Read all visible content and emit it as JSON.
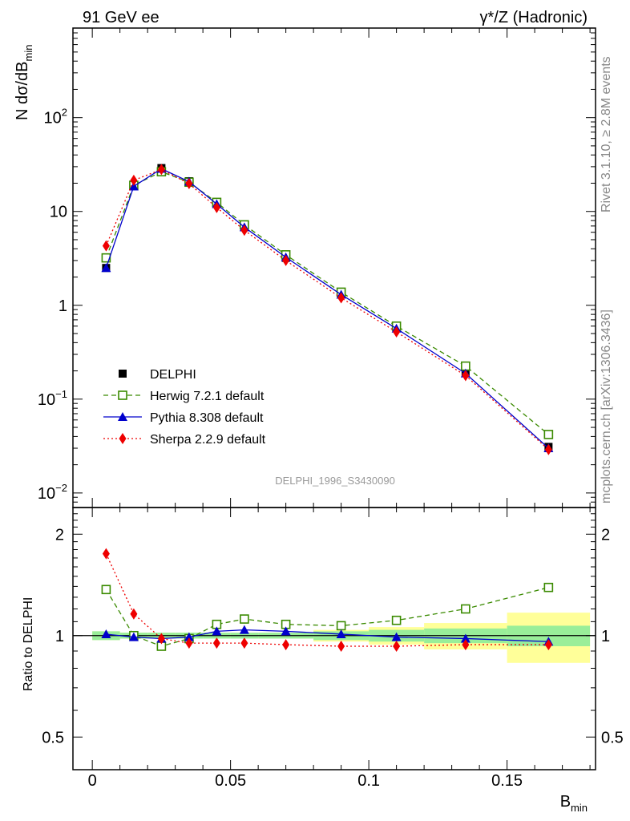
{
  "header": {
    "left": "91 GeV ee",
    "right": "γ*/Z (Hadronic)"
  },
  "side_text": {
    "upper": "Rivet 3.1.10, ≥ 2.8M events",
    "lower": "mcplots.cern.ch [arXiv:1306.3436]"
  },
  "watermark": "DELPHI_1996_S3430090",
  "colors": {
    "delphi": "#000000",
    "herwig": "#3a8a00",
    "pythia": "#0000cc",
    "sherpa": "#ee0000",
    "band_inner": "#99ee99",
    "band_outer": "#ffff99"
  },
  "chart_data": [
    {
      "type": "line",
      "panel": "main",
      "ylabel": "N dσ/dB",
      "ylabel_sub": "min",
      "yscale": "log",
      "ylim": [
        0.007,
        900
      ],
      "xlim": [
        -0.007,
        0.182
      ],
      "ytick_labels": [
        {
          "value": 100,
          "base": "10",
          "exp": "2"
        },
        {
          "value": 10,
          "base": "10",
          "exp": ""
        },
        {
          "value": 1,
          "base": "1",
          "exp": ""
        },
        {
          "value": 0.1,
          "base": "10",
          "exp": "−1"
        },
        {
          "value": 0.01,
          "base": "10",
          "exp": "−2"
        }
      ],
      "x": [
        0.005,
        0.015,
        0.025,
        0.035,
        0.045,
        0.055,
        0.07,
        0.09,
        0.11,
        0.135,
        0.165
      ],
      "series": [
        {
          "name": "DELPHI",
          "marker": "square-filled",
          "values": [
            2.5,
            19,
            29,
            21,
            12,
            6.8,
            3.2,
            1.3,
            0.57,
            0.19,
            0.031
          ]
        },
        {
          "name": "Herwig 7.2.1 default",
          "marker": "square-open",
          "dash": "dashed",
          "values": [
            3.2,
            19,
            26.5,
            20.5,
            12.5,
            7.2,
            3.45,
            1.38,
            0.6,
            0.225,
            0.042
          ]
        },
        {
          "name": "Pythia 8.308 default",
          "marker": "triangle-filled",
          "values": [
            2.5,
            18.5,
            28.5,
            20.8,
            12.0,
            6.8,
            3.25,
            1.3,
            0.565,
            0.188,
            0.03
          ]
        },
        {
          "name": "Sherpa 2.2.9 default",
          "marker": "diamond-filled",
          "dash": "dotted",
          "values": [
            4.3,
            21.5,
            28.0,
            19.8,
            11.0,
            6.3,
            3.0,
            1.2,
            0.52,
            0.178,
            0.029
          ]
        }
      ]
    },
    {
      "type": "line",
      "panel": "ratio",
      "ylabel": "Ratio to DELPHI",
      "ylim": [
        0.4,
        2.4
      ],
      "xlim": [
        -0.007,
        0.182
      ],
      "xlabel": "B",
      "xlabel_sub": "min",
      "xtick_labels": [
        "0",
        "0.05",
        "0.1",
        "0.15"
      ],
      "xtick_values": [
        0,
        0.05,
        0.1,
        0.15
      ],
      "ytick_labels": [
        "0.5",
        "1",
        "2"
      ],
      "ytick_values": [
        0.5,
        1,
        2
      ],
      "x": [
        0.005,
        0.015,
        0.025,
        0.035,
        0.045,
        0.055,
        0.07,
        0.09,
        0.11,
        0.135,
        0.165
      ],
      "bins": [
        [
          0,
          0.01
        ],
        [
          0.01,
          0.02
        ],
        [
          0.02,
          0.03
        ],
        [
          0.03,
          0.04
        ],
        [
          0.04,
          0.05
        ],
        [
          0.05,
          0.06
        ],
        [
          0.06,
          0.08
        ],
        [
          0.08,
          0.1
        ],
        [
          0.1,
          0.12
        ],
        [
          0.12,
          0.15
        ],
        [
          0.15,
          0.18
        ]
      ],
      "band_inner": [
        0.03,
        0.02,
        0.02,
        0.02,
        0.02,
        0.02,
        0.02,
        0.03,
        0.04,
        0.05,
        0.07
      ],
      "band_outer": [
        0.03,
        0.02,
        0.02,
        0.02,
        0.02,
        0.02,
        0.02,
        0.04,
        0.06,
        0.09,
        0.17
      ],
      "series": [
        {
          "name": "Herwig 7.2.1 default",
          "values": [
            1.37,
            1.0,
            0.93,
            0.98,
            1.08,
            1.12,
            1.08,
            1.07,
            1.11,
            1.2,
            1.39
          ]
        },
        {
          "name": "Pythia 8.308 default",
          "values": [
            1.01,
            0.99,
            0.98,
            0.99,
            1.03,
            1.04,
            1.03,
            1.01,
            0.99,
            0.98,
            0.96
          ]
        },
        {
          "name": "Sherpa 2.2.9 default",
          "values": [
            1.75,
            1.16,
            0.98,
            0.95,
            0.95,
            0.95,
            0.94,
            0.93,
            0.93,
            0.94,
            0.94
          ]
        }
      ]
    }
  ]
}
